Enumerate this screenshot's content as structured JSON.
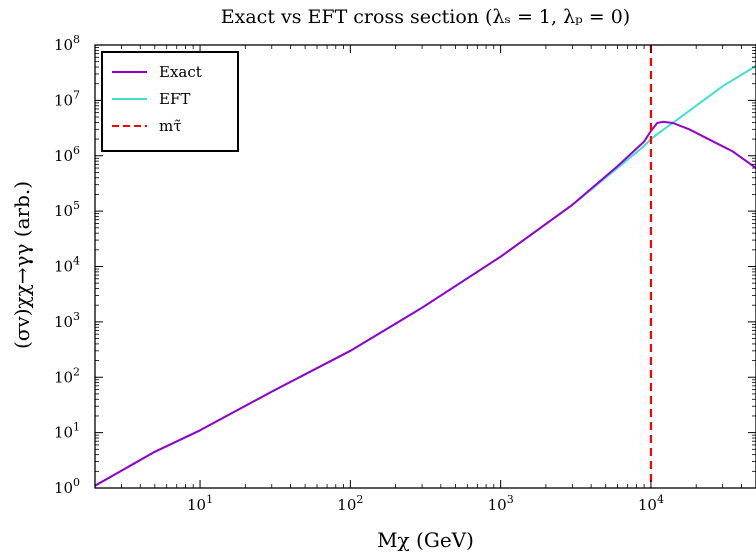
{
  "chart_data": {
    "type": "line",
    "title": "Exact vs EFT cross section (λₛ = 1,  λₚ = 0)",
    "xlabel": "Mχ (GeV)",
    "ylabel": "(σv)χχ→γγ (arb.)",
    "xscale": "log",
    "yscale": "log",
    "xlim": [
      2,
      50000
    ],
    "ylim": [
      1,
      100000000
    ],
    "grid": false,
    "legend_position": "top-left",
    "x_ticks": [
      {
        "value": 10,
        "base": "10",
        "exp": "1"
      },
      {
        "value": 100,
        "base": "10",
        "exp": "2"
      },
      {
        "value": 1000,
        "base": "10",
        "exp": "3"
      },
      {
        "value": 10000,
        "base": "10",
        "exp": "4"
      }
    ],
    "y_ticks": [
      {
        "value": 1,
        "base": "10",
        "exp": "0"
      },
      {
        "value": 10,
        "base": "10",
        "exp": "1"
      },
      {
        "value": 100,
        "base": "10",
        "exp": "2"
      },
      {
        "value": 1000,
        "base": "10",
        "exp": "3"
      },
      {
        "value": 10000,
        "base": "10",
        "exp": "4"
      },
      {
        "value": 100000,
        "base": "10",
        "exp": "5"
      },
      {
        "value": 1000000,
        "base": "10",
        "exp": "6"
      },
      {
        "value": 10000000,
        "base": "10",
        "exp": "7"
      },
      {
        "value": 100000000,
        "base": "10",
        "exp": "8"
      }
    ],
    "series": [
      {
        "name": "Exact",
        "color": "#9400D3",
        "style": "solid",
        "x": [
          2,
          5,
          10,
          30,
          100,
          300,
          1000,
          3000,
          6000,
          9000,
          10000,
          11000,
          12000,
          14000,
          18000,
          25000,
          35000,
          50000
        ],
        "y": [
          1.1,
          4.5,
          11,
          55,
          300,
          1800,
          15000,
          130000,
          650000,
          1800000,
          2800000,
          3900000,
          4100000,
          3900000,
          3000000,
          1900000,
          1200000,
          600000
        ]
      },
      {
        "name": "EFT",
        "color": "#40E0D0",
        "style": "solid",
        "x": [
          2,
          5,
          10,
          30,
          100,
          300,
          1000,
          3000,
          6000,
          9000,
          10000,
          12000,
          15000,
          20000,
          30000,
          50000
        ],
        "y": [
          1.1,
          4.5,
          11,
          55,
          300,
          1800,
          15000,
          130000,
          600000,
          1500000,
          2000000,
          2900000,
          4500000,
          8000000,
          18000000,
          42000000
        ]
      },
      {
        "name": "mτ̃",
        "color": "#FF0000",
        "style": "dashed",
        "vline_x": 10000
      }
    ],
    "legend": [
      {
        "label": "Exact",
        "color": "#9400D3",
        "style": "solid"
      },
      {
        "label": "EFT",
        "color": "#40E0D0",
        "style": "solid"
      },
      {
        "label": "mτ̃",
        "color": "#FF0000",
        "style": "dashed"
      }
    ]
  }
}
